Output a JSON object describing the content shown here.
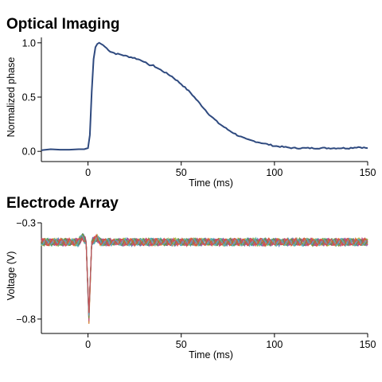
{
  "chart_data": [
    {
      "type": "line",
      "title": "Optical Imaging",
      "xlabel": "Time (ms)",
      "ylabel": "Normalized phase",
      "xlim": [
        -25,
        150
      ],
      "ylim": [
        -0.05,
        1.05
      ],
      "xticks": [
        0,
        50,
        100,
        150
      ],
      "yticks": [
        0.0,
        0.5,
        1.0
      ],
      "xtick_labels": [
        "0",
        "50",
        "100",
        "150"
      ],
      "ytick_labels": [
        "0.0",
        "0.5",
        "1.0"
      ],
      "grid": false,
      "colors": {
        "series": "#2f4a7f"
      },
      "series": [
        {
          "x": [
            -25,
            -20,
            -15,
            -10,
            -5,
            -2,
            0,
            1,
            2,
            3,
            4,
            5,
            6,
            7,
            8,
            10,
            12,
            15,
            18,
            20,
            25,
            30,
            32,
            35,
            40,
            45,
            50,
            55,
            60,
            65,
            70,
            75,
            80,
            85,
            90,
            95,
            100,
            105,
            110,
            120,
            130,
            140,
            145,
            150
          ],
          "y": [
            0.01,
            0.02,
            0.015,
            0.015,
            0.02,
            0.02,
            0.03,
            0.15,
            0.55,
            0.85,
            0.96,
            0.99,
            1.0,
            0.99,
            0.98,
            0.95,
            0.92,
            0.9,
            0.89,
            0.88,
            0.86,
            0.83,
            0.8,
            0.79,
            0.74,
            0.69,
            0.62,
            0.54,
            0.44,
            0.34,
            0.26,
            0.2,
            0.15,
            0.11,
            0.09,
            0.07,
            0.05,
            0.04,
            0.03,
            0.03,
            0.03,
            0.03,
            0.04,
            0.03
          ]
        }
      ]
    },
    {
      "type": "line",
      "title": "Electrode Array",
      "xlabel": "Time (ms)",
      "ylabel": "Voltage (V)",
      "xlim": [
        -25,
        150
      ],
      "ylim": [
        -0.85,
        -0.3
      ],
      "xticks": [
        0,
        50,
        100,
        150
      ],
      "yticks": [
        -0.3,
        -0.8
      ],
      "xtick_labels": [
        "0",
        "50",
        "100",
        "150"
      ],
      "ytick_labels": [
        "−0.3",
        "−0.8"
      ],
      "grid": false,
      "baseline": -0.4,
      "noise_amplitude": 0.015,
      "spike_time": 0,
      "spike_min": -0.83,
      "colors": {
        "traces": [
          "#3d6fb3",
          "#e0b33a",
          "#4aa84a",
          "#d9503e",
          "#8c6bb1",
          "#2aa6a0",
          "#a3c23a",
          "#e07b2e",
          "#c0467f",
          "#6f8f3a",
          "#5aa0d0",
          "#d04a4a"
        ]
      }
    }
  ]
}
